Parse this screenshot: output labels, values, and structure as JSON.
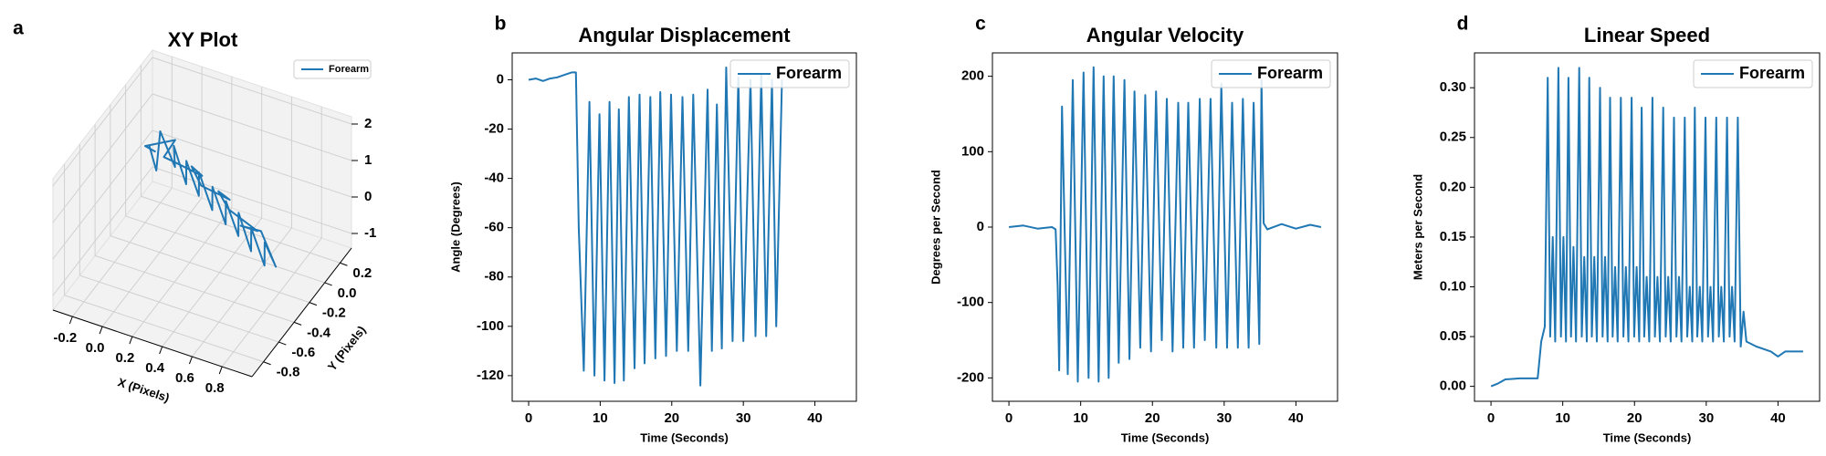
{
  "chart_data": [
    {
      "type": "line3d",
      "panel": "a",
      "title": "XY Plot",
      "xlabel": "X (Pixels)",
      "ylabel": "Y (Pixels)",
      "series": [
        {
          "name": "Forearm",
          "color": "#1f77b4",
          "x": [
            -0.2,
            -0.1,
            -0.15,
            0.0,
            -0.05,
            0.1,
            0.05,
            0.2,
            0.15,
            0.3,
            0.25,
            0.4,
            0.35,
            0.5,
            0.45,
            0.6,
            0.55,
            0.7,
            0.65,
            0.75,
            0.6,
            0.5,
            0.55,
            0.4,
            0.3,
            0.35,
            0.2,
            0.1,
            0.15,
            0.0,
            -0.1,
            -0.05,
            -0.2,
            -0.15
          ],
          "y": [
            0.05,
            -0.05,
            0.1,
            0,
            0.08,
            -0.05,
            0.05,
            -0.08,
            0.02,
            -0.1,
            0,
            -0.12,
            -0.02,
            -0.15,
            -0.05,
            -0.18,
            -0.08,
            -0.2,
            -0.1,
            -0.15,
            -0.05,
            -0.12,
            0,
            -0.08,
            -0.02,
            0.03,
            -0.05,
            0.02,
            0.06,
            -0.02,
            0.05,
            0.1,
            0,
            0.04
          ],
          "z": [
            0.6,
            0.3,
            0.9,
            0.4,
            0.7,
            0.2,
            0.5,
            0.1,
            0.4,
            -0.1,
            0.2,
            -0.3,
            0.0,
            -0.4,
            -0.1,
            -0.6,
            -0.3,
            -0.8,
            -0.5,
            -0.9,
            -0.4,
            -0.2,
            -0.6,
            0.0,
            0.2,
            -0.1,
            0.3,
            0.5,
            0.2,
            0.6,
            0.4,
            0.8,
            0.7,
            0.5
          ]
        }
      ],
      "xlim": [
        -0.33,
        1.0
      ],
      "ylim": [
        -0.95,
        0.35
      ],
      "zlim": [
        -1.4,
        2.2
      ],
      "xticks": [
        -0.2,
        {
          "value": 0,
          "label": "0.0"
        },
        0.2,
        0.4,
        0.6,
        0.8
      ],
      "yticks": [
        -0.8,
        -0.6,
        -0.4,
        -0.2,
        {
          "value": 0,
          "label": "0.0"
        },
        0.2
      ],
      "zticks": [
        -1,
        0,
        1,
        2
      ],
      "legend": "upper right",
      "grid": true
    },
    {
      "type": "line",
      "panel": "b",
      "title": "Angular Displacement",
      "xlabel": "Time (Seconds)",
      "ylabel": "Angle (Degrees)",
      "x": [
        0,
        1,
        2,
        3,
        4,
        5,
        6,
        6.6,
        7.0,
        7.7,
        8.5,
        9.2,
        9.9,
        10.6,
        11.3,
        12.0,
        12.6,
        13.3,
        14.0,
        14.8,
        15.5,
        16.2,
        17.0,
        17.7,
        18.4,
        19.2,
        19.9,
        20.7,
        21.5,
        22.3,
        23.0,
        24.0,
        25.0,
        25.6,
        26.3,
        27.0,
        27.6,
        28.5,
        29.3,
        30.0,
        31.0,
        31.7,
        32.5,
        33.2,
        34.0,
        34.6,
        35.4
      ],
      "series": [
        {
          "name": "Forearm",
          "color": "#1f77b4",
          "values": [
            0,
            0.5,
            -0.5,
            0.5,
            1,
            2,
            3,
            3,
            -60,
            -118,
            -9,
            -120,
            -14,
            -122,
            -9,
            -123,
            -12,
            -122,
            -7,
            -117,
            -6,
            -115,
            -7,
            -113,
            -5,
            -112,
            -6,
            -110,
            -7,
            -110,
            -6,
            -124,
            -4,
            -110,
            -10,
            -109,
            5,
            -106,
            1,
            -106,
            0,
            -104,
            2,
            -104,
            0,
            -100,
            0
          ]
        }
      ],
      "xlim": [
        -2.3,
        45.8
      ],
      "ylim": [
        -130.4,
        10.9
      ],
      "xticks": [
        0,
        10,
        20,
        30,
        40
      ],
      "yticks": [
        -120,
        -100,
        -80,
        -60,
        -40,
        -20,
        0
      ],
      "legend": "upper right",
      "grid": false
    },
    {
      "type": "line",
      "panel": "c",
      "title": "Angular Velocity",
      "xlabel": "Time (Seconds)",
      "ylabel": "Degrees per Second",
      "x": [
        0,
        2,
        4,
        6,
        6.5,
        6.8,
        7.0,
        7.4,
        8.2,
        8.9,
        9.6,
        10.4,
        11.1,
        11.8,
        12.5,
        13.2,
        13.9,
        14.6,
        15.3,
        16.1,
        16.8,
        17.5,
        18.3,
        19.0,
        19.8,
        20.5,
        21.3,
        22.0,
        22.8,
        23.6,
        24.3,
        25.0,
        25.8,
        26.6,
        27.3,
        28.1,
        28.9,
        29.6,
        30.4,
        31.1,
        31.9,
        32.6,
        33.4,
        34.1,
        34.9,
        35.2,
        35.5,
        36,
        38,
        40,
        42,
        43.5
      ],
      "series": [
        {
          "name": "Forearm",
          "color": "#1f77b4",
          "values": [
            0,
            2,
            -2,
            0,
            -3,
            -80,
            -190,
            160,
            -195,
            195,
            -205,
            205,
            -200,
            212,
            -205,
            200,
            -200,
            200,
            -180,
            195,
            -175,
            180,
            -160,
            175,
            -165,
            180,
            -150,
            170,
            -165,
            165,
            -160,
            165,
            -160,
            170,
            -150,
            170,
            -160,
            190,
            -160,
            165,
            -160,
            170,
            -160,
            165,
            -155,
            195,
            5,
            -3,
            4,
            -2,
            3,
            0
          ]
        }
      ],
      "xlim": [
        -2.3,
        45.8
      ],
      "ylim": [
        -231,
        231
      ],
      "xticks": [
        0,
        10,
        20,
        30,
        40
      ],
      "yticks": [
        -200,
        -100,
        0,
        100,
        200
      ],
      "legend": "upper right",
      "grid": false
    },
    {
      "type": "line",
      "panel": "d",
      "title": "Linear Speed",
      "xlabel": "Time (Seconds)",
      "ylabel": "Meters per Second",
      "x": [
        0,
        1,
        2,
        4,
        6.5,
        7.0,
        7.5,
        7.9,
        8.25,
        8.6,
        8.95,
        9.4,
        9.75,
        10.1,
        10.45,
        10.8,
        11.15,
        11.5,
        11.85,
        12.3,
        12.65,
        13.0,
        13.35,
        13.7,
        14.05,
        14.4,
        14.75,
        15.2,
        15.55,
        15.9,
        16.25,
        16.6,
        16.95,
        17.3,
        17.65,
        18.1,
        18.45,
        18.8,
        19.15,
        19.6,
        19.95,
        20.3,
        20.65,
        21.0,
        21.35,
        21.7,
        22.05,
        22.5,
        22.85,
        23.2,
        23.55,
        24.0,
        24.35,
        24.7,
        25.05,
        25.5,
        25.85,
        26.2,
        26.55,
        27.0,
        27.35,
        27.7,
        28.05,
        28.4,
        28.75,
        29.1,
        29.45,
        29.9,
        30.25,
        30.6,
        30.95,
        31.4,
        31.75,
        32.1,
        32.45,
        32.9,
        33.25,
        33.6,
        33.95,
        34.4,
        34.8,
        35.2,
        35.6,
        37,
        39,
        40,
        41,
        43.5
      ],
      "series": [
        {
          "name": "Forearm",
          "color": "#1f77b4",
          "values": [
            0,
            0.003,
            0.007,
            0.008,
            0.008,
            0.045,
            0.06,
            0.31,
            0.05,
            0.15,
            0.045,
            0.32,
            0.05,
            0.15,
            0.045,
            0.31,
            0.05,
            0.14,
            0.045,
            0.32,
            0.05,
            0.13,
            0.045,
            0.31,
            0.05,
            0.13,
            0.045,
            0.3,
            0.05,
            0.13,
            0.045,
            0.29,
            0.05,
            0.12,
            0.045,
            0.29,
            0.05,
            0.12,
            0.045,
            0.29,
            0.05,
            0.12,
            0.045,
            0.28,
            0.05,
            0.11,
            0.045,
            0.29,
            0.05,
            0.11,
            0.045,
            0.28,
            0.05,
            0.11,
            0.045,
            0.27,
            0.05,
            0.11,
            0.045,
            0.27,
            0.05,
            0.1,
            0.045,
            0.28,
            0.05,
            0.1,
            0.045,
            0.27,
            0.05,
            0.1,
            0.045,
            0.27,
            0.05,
            0.1,
            0.045,
            0.27,
            0.05,
            0.1,
            0.045,
            0.27,
            0.04,
            0.075,
            0.045,
            0.04,
            0.035,
            0.03,
            0.035,
            0.035
          ]
        }
      ],
      "xlim": [
        -2.3,
        45.8
      ],
      "ylim": [
        -0.015,
        0.335
      ],
      "xticks": [
        0,
        10,
        20,
        30,
        40
      ],
      "yticks": [
        {
          "value": 0,
          "label": "0.00"
        },
        {
          "value": 0.05,
          "label": "0.05"
        },
        {
          "value": 0.1,
          "label": "0.10"
        },
        {
          "value": 0.15,
          "label": "0.15"
        },
        {
          "value": 0.2,
          "label": "0.20"
        },
        {
          "value": 0.25,
          "label": "0.25"
        },
        {
          "value": 0.3,
          "label": "0.30"
        }
      ],
      "legend": "upper right",
      "grid": false
    }
  ]
}
